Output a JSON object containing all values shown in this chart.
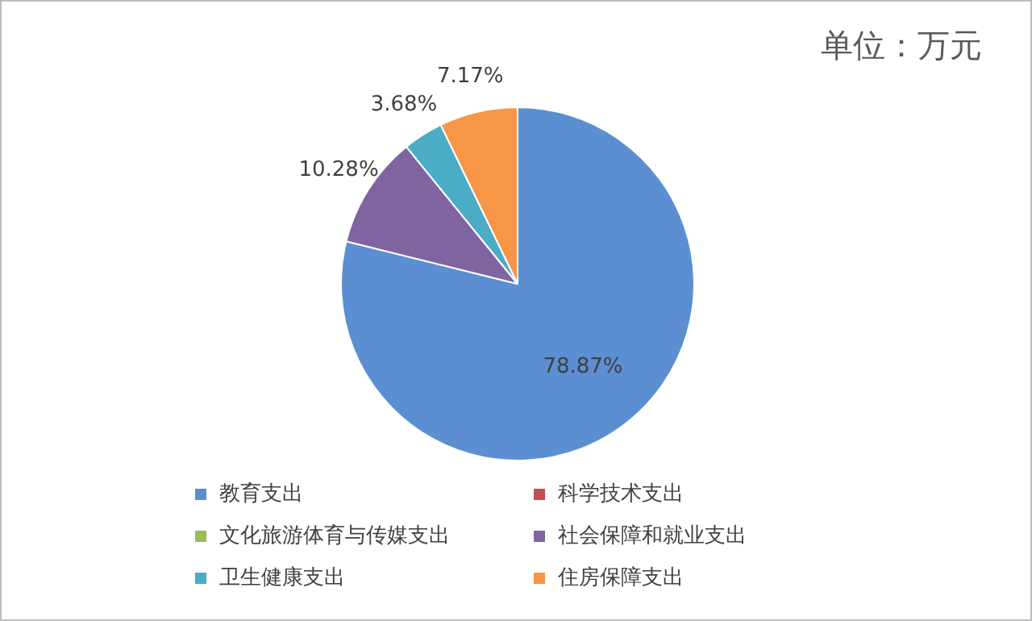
{
  "chart_data": {
    "type": "pie",
    "title": "单位：万元",
    "categories": [
      "教育支出",
      "科学技术支出",
      "文化旅游体育与传媒支出",
      "社会保障和就业支出",
      "卫生健康支出",
      "住房保障支出"
    ],
    "values": [
      78.87,
      0,
      0,
      10.28,
      3.68,
      7.17
    ],
    "colors": [
      "#5b8fd2",
      "#c0504d",
      "#9bbb59",
      "#8064a2",
      "#4bacc6",
      "#f79646"
    ],
    "value_labels": [
      "78.87%",
      null,
      null,
      "10.28%",
      "3.68%",
      "7.17%"
    ],
    "legend": "bottom"
  }
}
